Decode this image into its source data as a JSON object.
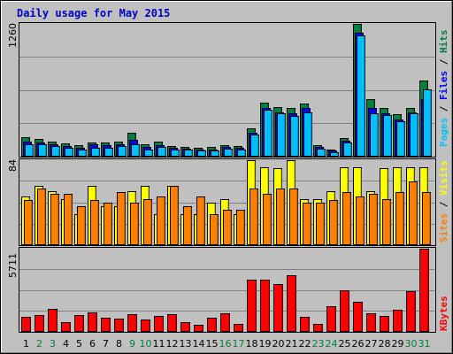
{
  "chart_data": {
    "type": "bar",
    "title": "Daily usage for May 2015",
    "categories": [
      "1",
      "2",
      "3",
      "4",
      "5",
      "6",
      "7",
      "8",
      "9",
      "10",
      "11",
      "12",
      "13",
      "14",
      "15",
      "16",
      "17",
      "18",
      "19",
      "20",
      "21",
      "22",
      "23",
      "24",
      "25",
      "26",
      "27",
      "28",
      "29",
      "30",
      "31"
    ],
    "weekend_days": [
      "2",
      "3",
      "9",
      "10",
      "16",
      "17",
      "23",
      "24",
      "30",
      "31"
    ],
    "panels": [
      {
        "id": "hits",
        "ymax": 1260,
        "ymax_label": "1260",
        "legend": [
          "Hits",
          "Files",
          "Pages"
        ],
        "series": [
          {
            "name": "Hits",
            "color": "#008040",
            "values": [
              180,
              165,
              145,
              125,
              110,
              135,
              130,
              145,
              225,
              120,
              145,
              100,
              95,
              85,
              90,
              110,
              100,
              270,
              510,
              470,
              455,
              500,
              110,
              70,
              175,
              1260,
              540,
              460,
              400,
              460,
              720
            ]
          },
          {
            "name": "Files",
            "color": "#0000ff",
            "values": [
              140,
              130,
              115,
              100,
              85,
              120,
              105,
              120,
              155,
              90,
              105,
              80,
              75,
              65,
              70,
              95,
              80,
              225,
              460,
              420,
              410,
              460,
              90,
              55,
              150,
              1170,
              455,
              410,
              350,
              420,
              540
            ]
          },
          {
            "name": "Pages",
            "color": "#00bfff",
            "values": [
              120,
              115,
              100,
              80,
              70,
              85,
              85,
              100,
              115,
              70,
              95,
              70,
              65,
              55,
              60,
              75,
              65,
              205,
              445,
              405,
              380,
              420,
              75,
              45,
              135,
              1140,
              410,
              395,
              330,
              405,
              635
            ]
          }
        ]
      },
      {
        "id": "visits",
        "ymax": 84,
        "ymax_label": "84",
        "legend": [
          "Visits",
          "Sites"
        ],
        "series": [
          {
            "name": "Visits",
            "color": "#ffff00",
            "values": [
              48,
              58,
              53,
              45,
              30,
              58,
              38,
              38,
              53,
              58,
              30,
              58,
              30,
              30,
              42,
              45,
              30,
              84,
              76,
              75,
              84,
              45,
              45,
              53,
              76,
              76,
              53,
              75,
              76,
              76,
              76
            ]
          },
          {
            "name": "Sites",
            "color": "#ff8000",
            "values": [
              44,
              55,
              50,
              50,
              38,
              44,
              42,
              52,
              42,
              45,
              48,
              58,
              38,
              48,
              30,
              35,
              35,
              55,
              50,
              55,
              55,
              42,
              42,
              44,
              52,
              48,
              50,
              45,
              52,
              62,
              52
            ]
          }
        ]
      },
      {
        "id": "kbytes",
        "ymax": 5711,
        "ymax_label": "5711",
        "legend": [
          "KBytes"
        ],
        "series": [
          {
            "name": "KBytes",
            "color": "#ff0000",
            "values": [
              1000,
              1150,
              1550,
              650,
              1150,
              1350,
              950,
              900,
              1200,
              850,
              1100,
              1200,
              650,
              500,
              950,
              1250,
              550,
              3550,
              3550,
              3250,
              3850,
              1050,
              550,
              1750,
              2850,
              2050,
              1250,
              1100,
              1500,
              2750,
              5711
            ]
          }
        ]
      }
    ]
  }
}
